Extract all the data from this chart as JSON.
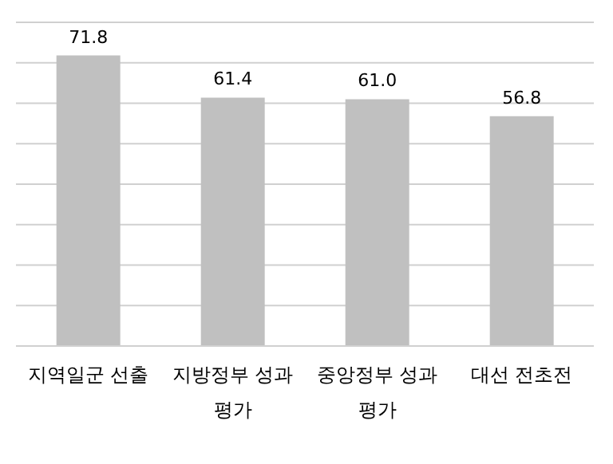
{
  "chart_data": {
    "type": "bar",
    "categories": [
      "지역일군 선출",
      "지방정부 성과 평가",
      "중앙정부 성과 평가",
      "대선 전초전"
    ],
    "values": [
      71.8,
      61.4,
      61.0,
      56.8
    ],
    "color": "#c0c0c0",
    "value_labels": [
      "71.8",
      "61.4",
      "61.0",
      "56.8"
    ],
    "ylim": [
      0,
      80
    ],
    "yticks": [
      0,
      10,
      20,
      30,
      40,
      50,
      60,
      70,
      80
    ],
    "grid": "y",
    "tick_labels": "x"
  }
}
